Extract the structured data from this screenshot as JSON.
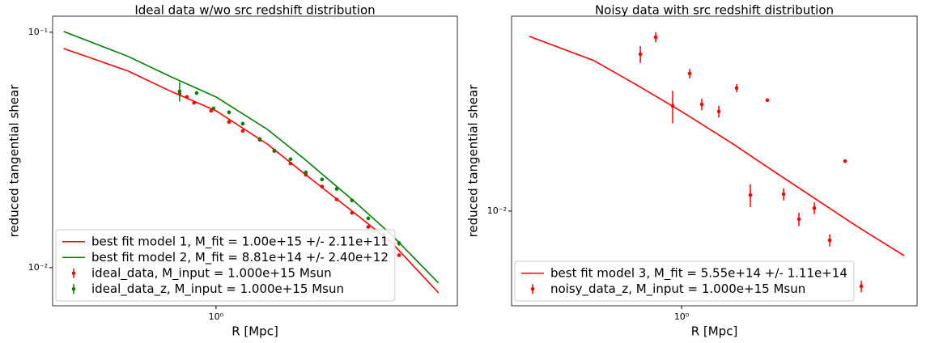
{
  "chart_data": [
    {
      "type": "line",
      "title": "Ideal data w/wo src redshift distribution",
      "xlabel": "R [Mpc]",
      "ylabel": "reduced tangential shear",
      "xscale": "log",
      "yscale": "log",
      "xlim": [
        0.275,
        6.73
      ],
      "ylim": [
        0.00689,
        0.117
      ],
      "xticks": [
        {
          "value": 1,
          "label": "10⁰"
        }
      ],
      "yticks": [
        {
          "value": 0.1,
          "label": "10⁻¹"
        },
        {
          "value": 0.01,
          "label": "10⁻²"
        }
      ],
      "legend": "lower left",
      "series": [
        {
          "name": "best fit model 1, M_fit = 1.00e+15 +/- 2.11e+11",
          "color": "#ff0000",
          "mode": "line",
          "x": [
            0.3,
            0.5,
            0.7,
            1,
            1.5,
            2,
            3,
            4,
            5.8
          ],
          "values": [
            0.0853,
            0.0684,
            0.0561,
            0.0464,
            0.0335,
            0.0252,
            0.017,
            0.0128,
            0.00782
          ]
        },
        {
          "name": "best fit model 2, M_fit = 8.81e+14 +/- 2.40e+12",
          "color": "#008000",
          "mode": "line",
          "x": [
            0.3,
            0.5,
            0.7,
            1,
            1.5,
            2,
            3,
            4,
            5.8
          ],
          "values": [
            0.1008,
            0.0789,
            0.0647,
            0.0531,
            0.0387,
            0.0291,
            0.019,
            0.0138,
            0.00861
          ]
        },
        {
          "name": "ideal_data, M_input = 1.000e+15 Msun",
          "color": "#ff0000",
          "mode": "points",
          "x": [
            0.75,
            0.794,
            0.841,
            0.962,
            1.108,
            1.235,
            1.413,
            1.585,
            1.801,
            2.034,
            2.311,
            2.594,
            2.929,
            3.329,
            3.758,
            4.245
          ],
          "values": [
            0.0548,
            0.0531,
            0.0502,
            0.0464,
            0.0416,
            0.0381,
            0.0349,
            0.0313,
            0.0277,
            0.0248,
            0.0221,
            0.0195,
            0.0171,
            0.0149,
            0.0131,
            0.0113
          ],
          "errors": [
            0.0002,
            0.0002,
            0.0002,
            0.0002,
            0.0002,
            0.0002,
            0.0002,
            0.0002,
            0.0002,
            0.0002,
            0.0002,
            0.0002,
            0.0002,
            0.0002,
            0.0002,
            0.0002
          ]
        },
        {
          "name": "ideal_data_z, M_input = 1.000e+15 Msun",
          "color": "#008000",
          "mode": "points",
          "x": [
            0.75,
            0.858,
            0.981,
            1.108,
            1.235,
            1.413,
            1.585,
            1.801,
            2.034,
            2.311,
            2.594,
            2.929,
            3.329,
            3.758,
            4.245
          ],
          "values": [
            0.0561,
            0.0552,
            0.0475,
            0.0457,
            0.0409,
            0.0352,
            0.0315,
            0.0289,
            0.0254,
            0.0237,
            0.0216,
            0.0193,
            0.0162,
            0.0138,
            0.0127
          ],
          "errors": [
            0.0053,
            0.0004,
            0.0003,
            0.0003,
            0.0003,
            0.0003,
            0.0003,
            0.0003,
            0.0003,
            0.0003,
            0.0003,
            0.0003,
            0.0003,
            0.0003,
            0.0003
          ]
        }
      ]
    },
    {
      "type": "line",
      "title": "Noisy data with src redshift distribution",
      "xlabel": "R [Mpc]",
      "ylabel": "reduced tangential shear",
      "xscale": "log",
      "yscale": "log",
      "xlim": [
        0.261,
        6.43
      ],
      "ylim": [
        0.00396,
        0.0673
      ],
      "xticks": [
        {
          "value": 1,
          "label": "10⁰"
        }
      ],
      "yticks": [
        {
          "value": 0.01,
          "label": "10⁻²"
        }
      ],
      "legend": "lower left",
      "series": [
        {
          "name": "best fit model 3, M_fit = 5.55e+14 +/- 1.11e+14",
          "color": "#ff0000",
          "mode": "line",
          "x": [
            0.3,
            0.5,
            0.7,
            1,
            1.5,
            2,
            3,
            4,
            5.8
          ],
          "values": [
            0.0553,
            0.0436,
            0.0344,
            0.0265,
            0.0193,
            0.0152,
            0.0109,
            0.00861,
            0.00647
          ]
        },
        {
          "name": "noisy_data_z, M_input = 1.000e+15 Msun",
          "color": "#ff0000",
          "mode": "points",
          "x": [
            0.722,
            0.815,
            0.932,
            1.066,
            1.173,
            1.342,
            1.545,
            1.722,
            1.97,
            2.239,
            2.528,
            2.855,
            3.224,
            3.64,
            4.137
          ],
          "values": [
            0.0464,
            0.0548,
            0.028,
            0.0384,
            0.0284,
            0.0265,
            0.0333,
            0.0117,
            0.0296,
            0.0118,
            0.00924,
            0.0103,
            0.00752,
            0.0163,
            0.00479
          ],
          "errors": [
            0.0038,
            0.0027,
            0.0044,
            0.0018,
            0.0016,
            0.0015,
            0.0013,
            0.0013,
            0.0004,
            0.0007,
            0.0006,
            0.0006,
            0.00045,
            0.0002,
            0.00027
          ]
        }
      ]
    }
  ]
}
